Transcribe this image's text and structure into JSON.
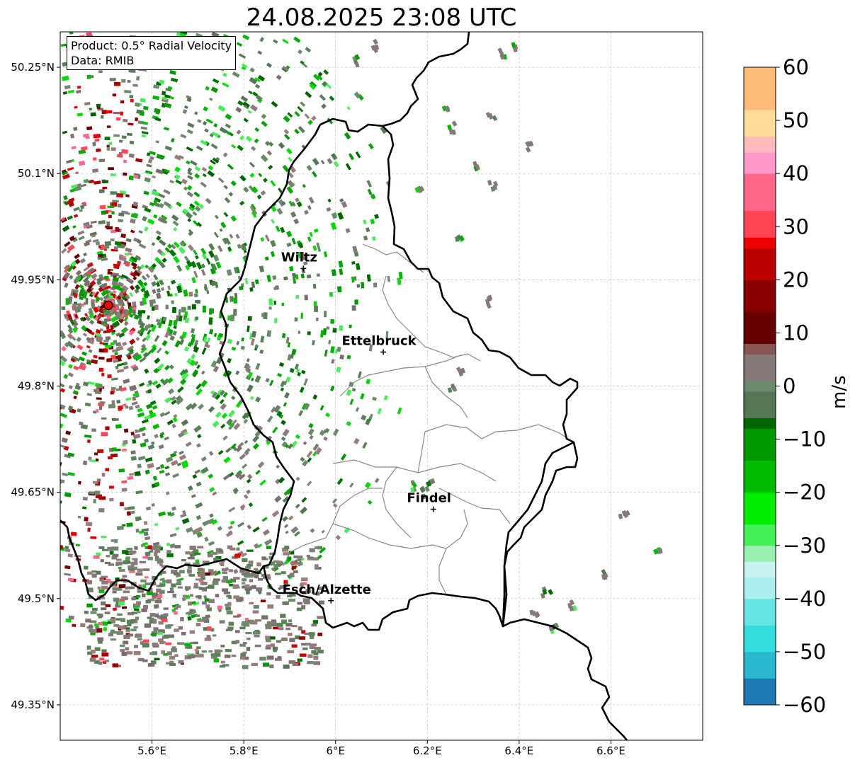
{
  "title": "24.08.2025 23:08 UTC",
  "info": {
    "product": "Product: 0.5° Radial Velocity",
    "source": "Data: RMIB"
  },
  "map": {
    "lon_range": [
      5.4,
      6.8
    ],
    "lat_range": [
      49.3,
      50.3
    ],
    "lon_ticks": [
      {
        "value": 5.6,
        "label": "5.6°E"
      },
      {
        "value": 5.8,
        "label": "5.8°E"
      },
      {
        "value": 6.0,
        "label": "6°E"
      },
      {
        "value": 6.2,
        "label": "6.2°E"
      },
      {
        "value": 6.4,
        "label": "6.4°E"
      },
      {
        "value": 6.6,
        "label": "6.6°E"
      }
    ],
    "lat_ticks": [
      {
        "value": 49.35,
        "label": "49.35°N"
      },
      {
        "value": 49.5,
        "label": "49.5°N"
      },
      {
        "value": 49.65,
        "label": "49.65°N"
      },
      {
        "value": 49.8,
        "label": "49.8°N"
      },
      {
        "value": 49.95,
        "label": "49.95°N"
      },
      {
        "value": 50.1,
        "label": "50.1°N"
      },
      {
        "value": 50.25,
        "label": "50.25°N"
      }
    ],
    "gridlines": true,
    "radar_site": {
      "lon": 5.505,
      "lat": 49.914
    },
    "cities": [
      {
        "name": "Wiltz",
        "lon": 5.93,
        "lat": 49.966
      },
      {
        "name": "Ettelbruck",
        "lon": 6.104,
        "lat": 49.848
      },
      {
        "name": "Findel",
        "lon": 6.213,
        "lat": 49.626
      },
      {
        "name": "Esch/Alzette",
        "lon": 5.99,
        "lat": 49.497
      }
    ]
  },
  "colorbar": {
    "unit": "m/s",
    "min": -60,
    "max": 60,
    "ticks": [
      {
        "value": 60,
        "label": "60"
      },
      {
        "value": 50,
        "label": "50"
      },
      {
        "value": 40,
        "label": "40"
      },
      {
        "value": 30,
        "label": "30"
      },
      {
        "value": 20,
        "label": "20"
      },
      {
        "value": 10,
        "label": "10"
      },
      {
        "value": 0,
        "label": "0"
      },
      {
        "value": -10,
        "label": "−10"
      },
      {
        "value": -20,
        "label": "−20"
      },
      {
        "value": -30,
        "label": "−30"
      },
      {
        "value": -40,
        "label": "−40"
      },
      {
        "value": -50,
        "label": "−50"
      },
      {
        "value": -60,
        "label": "−60"
      }
    ],
    "stops": [
      {
        "value": -60,
        "color": "#1f77b4"
      },
      {
        "value": -55,
        "color": "#2ab7d0"
      },
      {
        "value": -50,
        "color": "#33dddd"
      },
      {
        "value": -45,
        "color": "#66e5e5"
      },
      {
        "value": -40,
        "color": "#aaeeee"
      },
      {
        "value": -36,
        "color": "#c8f2f0"
      },
      {
        "value": -33,
        "color": "#99f0b0"
      },
      {
        "value": -30,
        "color": "#44f055"
      },
      {
        "value": -26,
        "color": "#00ee00"
      },
      {
        "value": -20,
        "color": "#00bb00"
      },
      {
        "value": -14,
        "color": "#009900"
      },
      {
        "value": -8,
        "color": "#006600"
      },
      {
        "value": -6,
        "color": "#557755"
      },
      {
        "value": -1,
        "color": "#6b8a6b"
      },
      {
        "value": 1,
        "color": "#867878"
      },
      {
        "value": 6,
        "color": "#885555"
      },
      {
        "value": 8,
        "color": "#660000"
      },
      {
        "value": 14,
        "color": "#880000"
      },
      {
        "value": 20,
        "color": "#bb0000"
      },
      {
        "value": 26,
        "color": "#ee0000"
      },
      {
        "value": 28,
        "color": "#ff4455"
      },
      {
        "value": 33,
        "color": "#ff6688"
      },
      {
        "value": 40,
        "color": "#ff99cc"
      },
      {
        "value": 44,
        "color": "#ffbbbb"
      },
      {
        "value": 47,
        "color": "#ffdd99"
      },
      {
        "value": 52,
        "color": "#ffbb77"
      },
      {
        "value": 60,
        "color": "#ff9955"
      }
    ]
  },
  "colors": {
    "border": "#000000",
    "cantons": "#888888",
    "grid": "#bbbbbb",
    "radar_marker": "#ff0000"
  }
}
